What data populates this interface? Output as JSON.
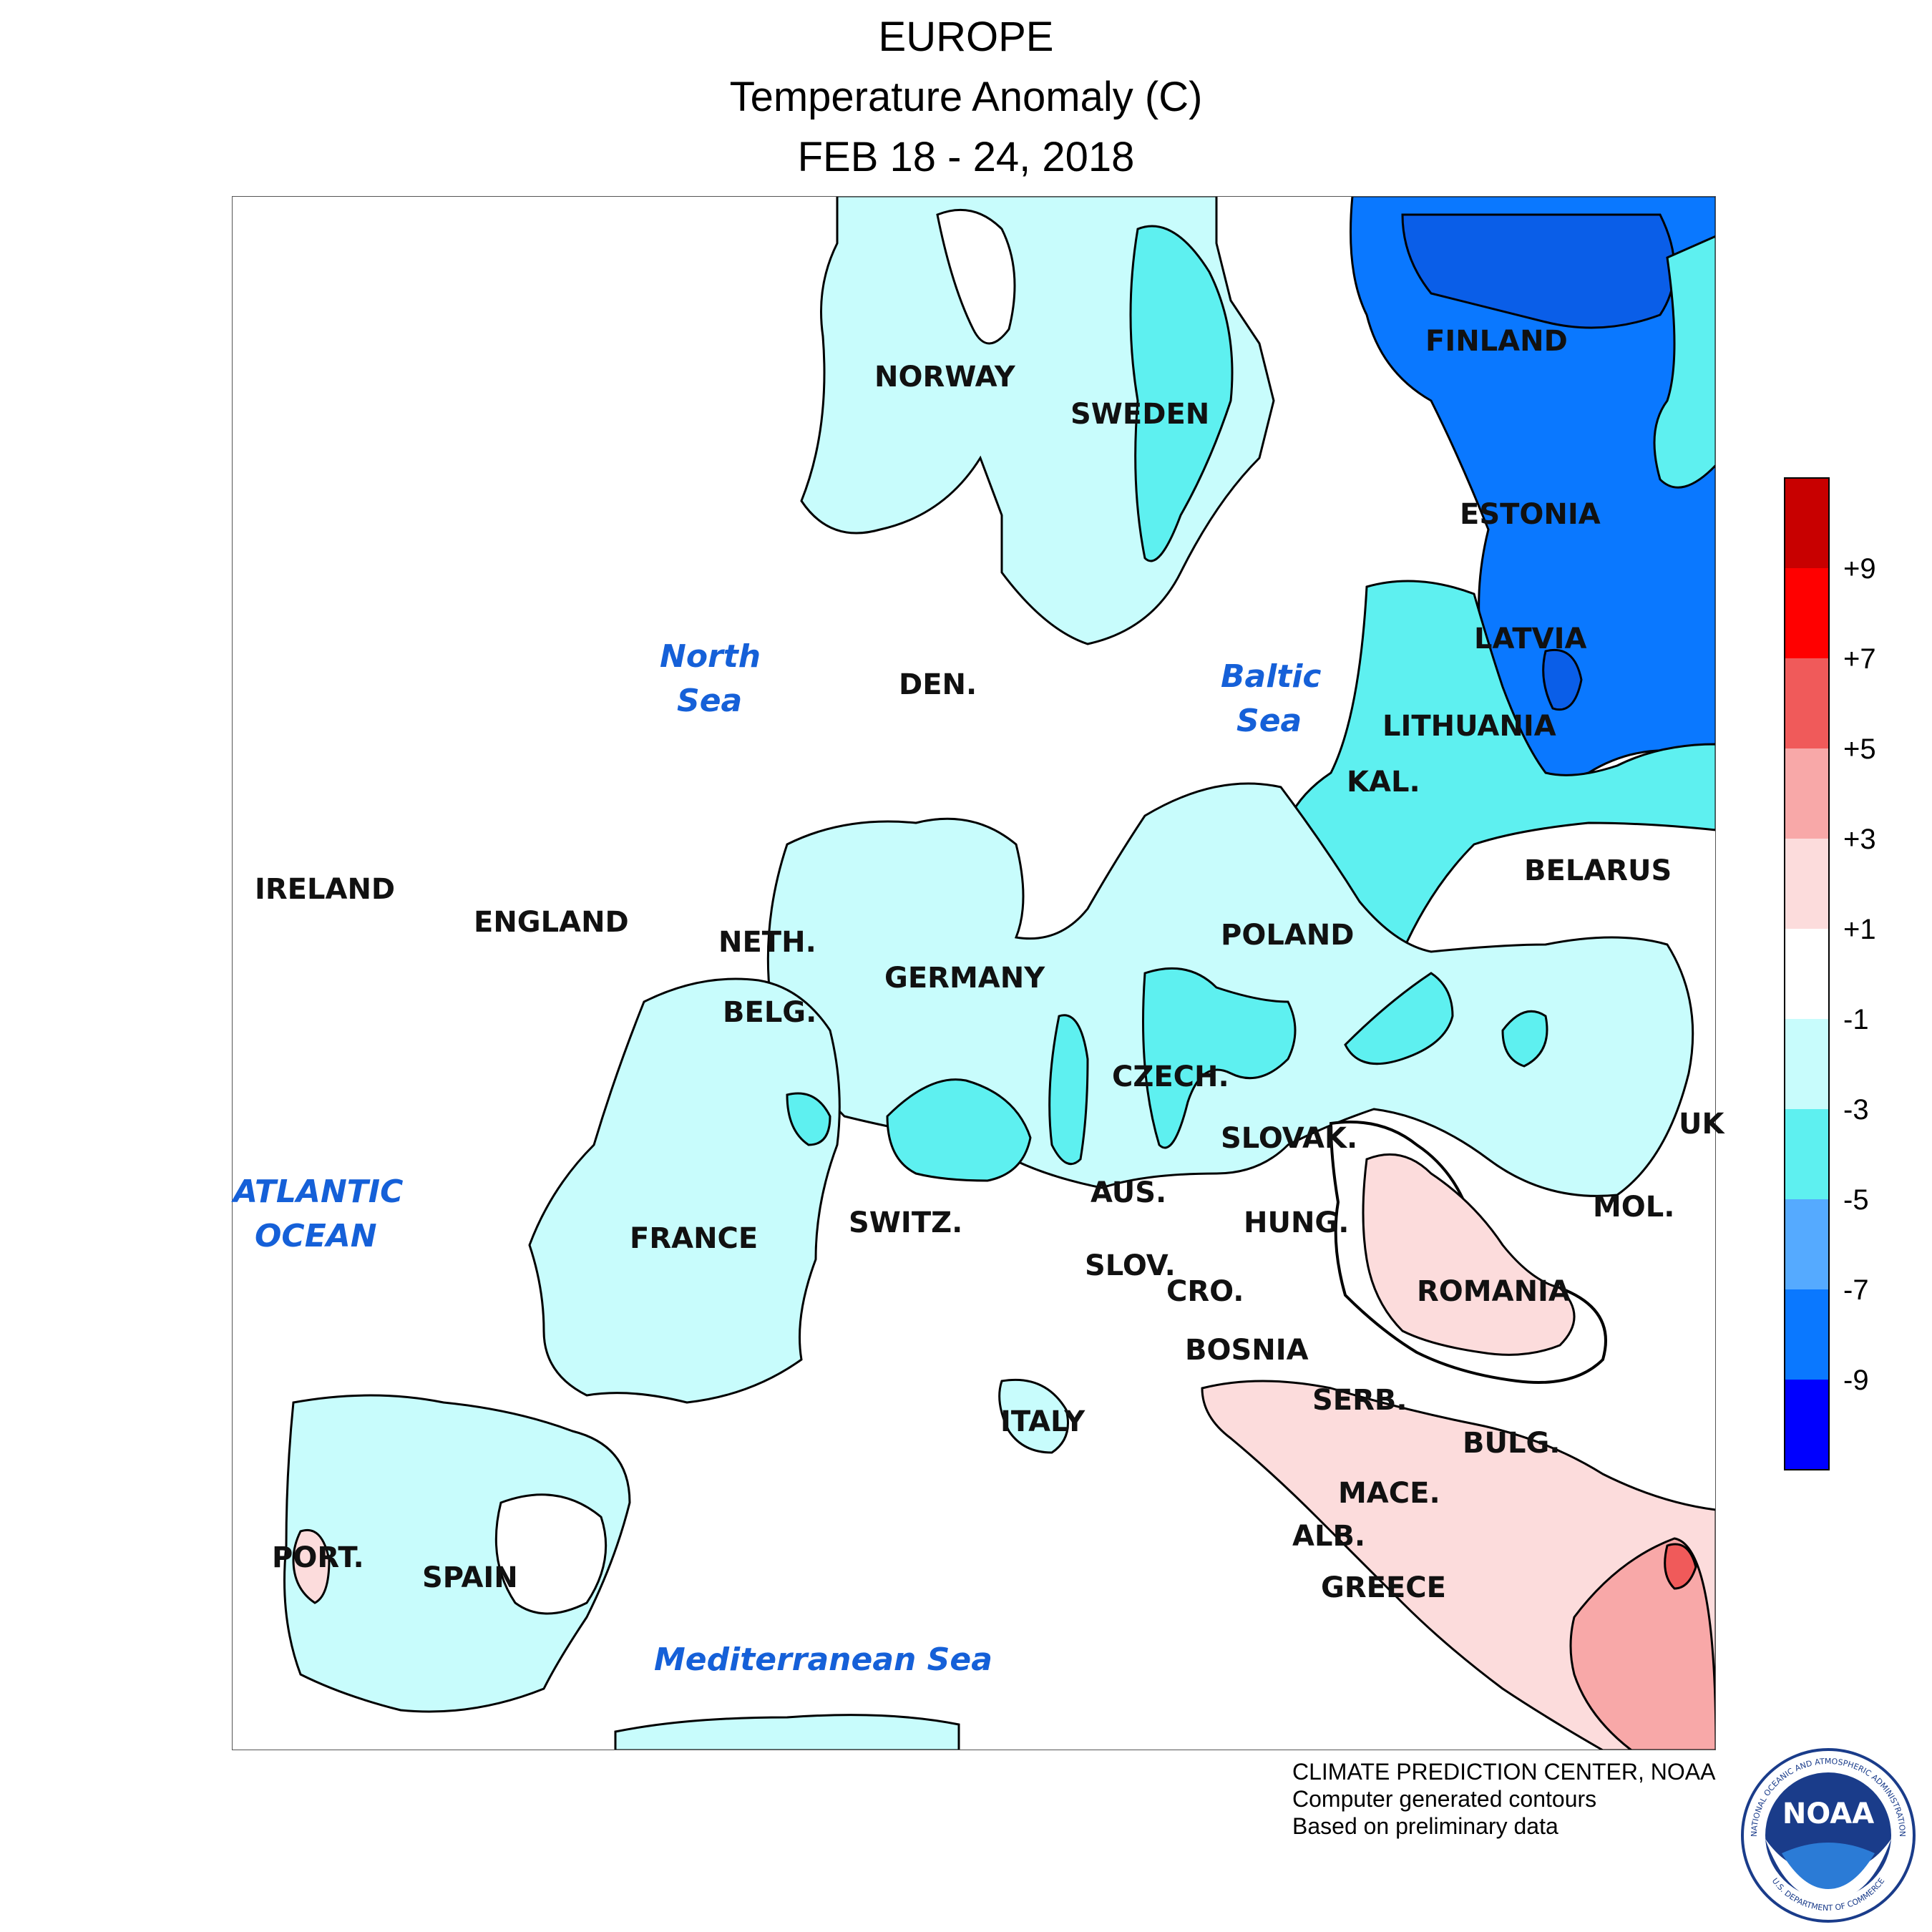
{
  "header": {
    "region": "EUROPE",
    "variable": "Temperature Anomaly (C)",
    "period": "FEB 18 - 24, 2018"
  },
  "colors": {
    "land_neutral": "#ffffff",
    "anom_neg1_neg3": "#c8fcfc",
    "anom_neg3_neg5": "#5ef0f0",
    "anom_neg5_neg7": "#55aaff",
    "anom_neg7_neg9": "#0a78ff",
    "anom_below_neg9": "#0000ff",
    "anom_pos1_pos3": "#fcdcdc",
    "anom_pos3_pos5": "#f8a8a8",
    "anom_pos5_pos7": "#f05a5a",
    "anom_pos7_pos9": "#ff0000",
    "anom_above_pos9": "#c80000",
    "sea_label": "#1560d8"
  },
  "legend": {
    "labels": [
      "+9",
      "+7",
      "+5",
      "+3",
      "+1",
      "-1",
      "-3",
      "-5",
      "-7",
      "-9"
    ]
  },
  "map": {
    "countries": {
      "finland": "FINLAND",
      "norway": "NORWAY",
      "sweden": "SWEDEN",
      "estonia": "ESTONIA",
      "latvia": "LATVIA",
      "lithuania": "LITHUANIA",
      "den": "DEN.",
      "kal": "KAL.",
      "belarus": "BELARUS",
      "ireland": "IRELAND",
      "england": "ENGLAND",
      "neth": "NETH.",
      "poland": "POLAND",
      "germany": "GERMANY",
      "belg": "BELG.",
      "czech": "CZECH.",
      "slovak": "SLOVAK.",
      "uk": "UK",
      "aus": "AUS.",
      "switz": "SWITZ.",
      "hung": "HUNG.",
      "mol": "MOL.",
      "france": "FRANCE",
      "slov": "SLOV.",
      "cro": "CRO.",
      "romania": "ROMANIA",
      "bosnia": "BOSNIA",
      "serb": "SERB.",
      "italy": "ITALY",
      "bulg": "BULG.",
      "mace": "MACE.",
      "alb": "ALB.",
      "port": "PORT.",
      "spain": "SPAIN",
      "greece": "GREECE"
    },
    "seas": {
      "north_sea_1": "North",
      "north_sea_2": "Sea",
      "baltic_sea_1": "Baltic",
      "baltic_sea_2": "Sea",
      "atlantic_1": "ATLANTIC",
      "atlantic_2": "OCEAN",
      "mediterranean": "Mediterranean Sea"
    }
  },
  "credits": {
    "line1": "CLIMATE PREDICTION CENTER, NOAA",
    "line2": "Computer generated contours",
    "line3": "Based on preliminary data"
  },
  "logo": {
    "text": "NOAA",
    "ring_top": "NATIONAL OCEANIC AND ATMOSPHERIC ADMINISTRATION",
    "ring_bottom": "U.S. DEPARTMENT OF COMMERCE"
  }
}
